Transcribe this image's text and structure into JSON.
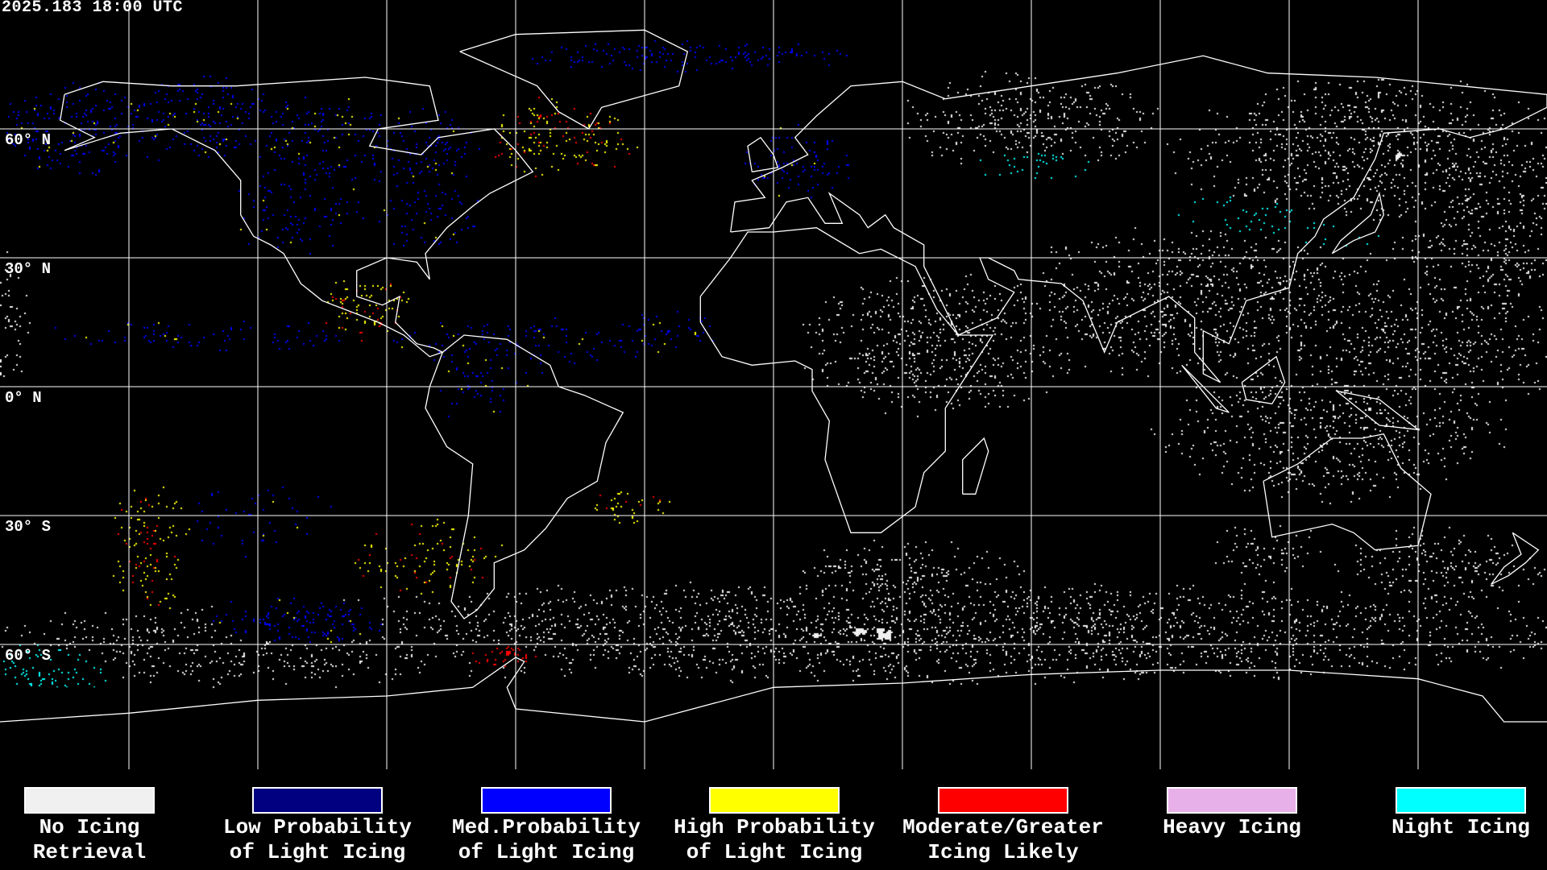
{
  "header": {
    "timestamp": "2025.183 18:00 UTC"
  },
  "map": {
    "projection": "equirectangular",
    "lat_labels": [
      "60° N",
      "30° N",
      "0° N",
      "30° S",
      "60° S"
    ],
    "colors": {
      "background": "#000000",
      "coastline": "#ffffff",
      "gridline": "#ffffff"
    }
  },
  "legend": [
    {
      "line1": "No Icing",
      "line2": "Retrieval",
      "color": "#f0f0f0"
    },
    {
      "line1": "Low Probability",
      "line2": "of Light Icing",
      "color": "#000080"
    },
    {
      "line1": "Med.Probability",
      "line2": "of Light Icing",
      "color": "#0000ff"
    },
    {
      "line1": "High Probability",
      "line2": "of Light Icing",
      "color": "#ffff00"
    },
    {
      "line1": "Moderate/Greater",
      "line2": "Icing Likely",
      "color": "#ff0000"
    },
    {
      "line1": "Heavy Icing",
      "line2": "",
      "color": "#e8b0e8"
    },
    {
      "line1": "Night Icing",
      "line2": "",
      "color": "#00ffff"
    }
  ]
}
